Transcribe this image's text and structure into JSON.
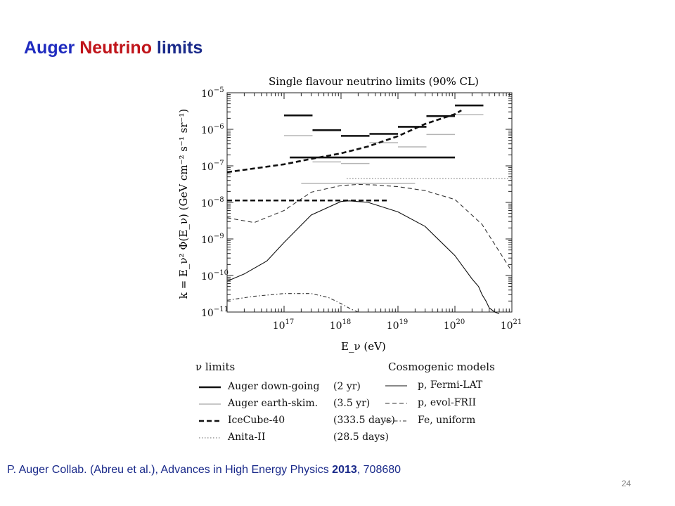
{
  "slide": {
    "title_part1": "Auger",
    "title_part2": "Neutrino",
    "title_part3": "limits",
    "colors": {
      "blue": "#1f2bbf",
      "red": "#c0141a",
      "navy": "#1a2a8a"
    },
    "citation_authors": "P. Auger Collab. (Abreu et al.),  Advances in High Energy Physics ",
    "citation_year": "2013",
    "citation_id": ", 708680",
    "page_number": "24"
  },
  "chart_data": {
    "type": "line",
    "title": "Single flavour neutrino limits (90% CL)",
    "xlabel": "E_ν (eV)",
    "ylabel": "k = E_ν² Φ(E_ν) (GeV cm⁻² s⁻¹ sr⁻¹)",
    "x_scale": "log",
    "y_scale": "log",
    "xlim": [
      1e+16,
      1e+21
    ],
    "ylim": [
      1e-11,
      1e-05
    ],
    "x_ticks": [
      {
        "v": 1e+17,
        "base": "10",
        "exp": "17"
      },
      {
        "v": 1e+18,
        "base": "10",
        "exp": "18"
      },
      {
        "v": 1e+19,
        "base": "10",
        "exp": "19"
      },
      {
        "v": 1e+20,
        "base": "10",
        "exp": "20"
      },
      {
        "v": 1e+21,
        "base": "10",
        "exp": "21"
      }
    ],
    "y_ticks": [
      {
        "v": 1e-05,
        "base": "10",
        "exp": "−5"
      },
      {
        "v": 1e-06,
        "base": "10",
        "exp": "−6"
      },
      {
        "v": 1e-07,
        "base": "10",
        "exp": "−7"
      },
      {
        "v": 1e-08,
        "base": "10",
        "exp": "−8"
      },
      {
        "v": 1e-09,
        "base": "10",
        "exp": "−9"
      },
      {
        "v": 1e-10,
        "base": "10",
        "exp": "−10"
      },
      {
        "v": 1e-11,
        "base": "10",
        "exp": "−11"
      }
    ],
    "grid": false,
    "legend": {
      "limits_heading": "ν limits",
      "models_heading": "Cosmogenic models",
      "limits": [
        {
          "name": "Auger down-going",
          "note": "(2 yr)",
          "style": "thick-solid"
        },
        {
          "name": "Auger earth-skim.",
          "note": "(3.5 yr)",
          "style": "thin-grey"
        },
        {
          "name": "IceCube-40",
          "note": "(333.5 days)",
          "style": "thick-dashed"
        },
        {
          "name": "Anita-II",
          "note": "(28.5 days)",
          "style": "dotted"
        }
      ],
      "models": [
        {
          "name": "p, Fermi-LAT",
          "style": "solid"
        },
        {
          "name": "p, evol-FRII",
          "style": "dashed"
        },
        {
          "name": "Fe, uniform",
          "style": "dash-dot"
        }
      ]
    },
    "series": [
      {
        "name": "Auger down-going",
        "kind": "steps",
        "style": "thick-solid",
        "bins": [
          [
            1e+17,
            3.16e+17,
            2.4e-06
          ],
          [
            3.16e+17,
            1e+18,
            9.5e-07
          ],
          [
            1e+18,
            3.16e+18,
            6.6e-07
          ],
          [
            3.16e+18,
            1e+19,
            7.5e-07
          ],
          [
            1e+19,
            3.16e+19,
            1.17e-06
          ],
          [
            3.16e+19,
            1e+20,
            2.3e-06
          ],
          [
            1e+20,
            3.16e+20,
            4.5e-06
          ]
        ]
      },
      {
        "name": "Auger down-going",
        "kind": "integrated",
        "style": "thick-solid",
        "x_range": [
          1.26e+17,
          1e+20
        ],
        "y": 1.7e-07
      },
      {
        "name": "Auger earth-skim.",
        "kind": "steps",
        "style": "thin-grey",
        "bins": [
          [
            1e+17,
            3.16e+17,
            6.7e-07
          ],
          [
            3.16e+17,
            1e+18,
            1.28e-07
          ],
          [
            1e+18,
            3.16e+18,
            1.16e-07
          ],
          [
            3.16e+18,
            1e+19,
            4.3e-07
          ],
          [
            1e+19,
            3.16e+19,
            3.3e-07
          ],
          [
            3.16e+19,
            1e+20,
            7.2e-07
          ],
          [
            1e+20,
            3.16e+20,
            2.5e-06
          ]
        ]
      },
      {
        "name": "Auger earth-skim.",
        "kind": "integrated",
        "style": "thin-grey",
        "x_range": [
          2e+17,
          2e+19
        ],
        "y": 3.3e-08
      },
      {
        "name": "IceCube-40",
        "kind": "curve",
        "style": "thick-dashed",
        "x": [
          1e+16,
          3e+16,
          1e+17,
          3e+17,
          1e+18,
          3e+18,
          1e+19,
          3e+19,
          1e+20,
          1.3e+20
        ],
        "y": [
          6.7e-08,
          8.5e-08,
          1.1e-07,
          1.55e-07,
          2.2e-07,
          3.4e-07,
          6.5e-07,
          1.4e-06,
          2.6e-06,
          3.3e-06
        ]
      },
      {
        "name": "IceCube-40",
        "kind": "integrated",
        "style": "thick-dashed",
        "x_range": [
          1e+16,
          7e+18
        ],
        "y": 1.13e-08
      },
      {
        "name": "Anita-II",
        "kind": "integrated",
        "style": "dotted",
        "x_range": [
          1.26e+18,
          1e+21
        ],
        "y": 4.5e-08
      },
      {
        "name": "p, Fermi-LAT",
        "kind": "curve",
        "style": "solid",
        "x": [
          1e+16,
          2e+16,
          5e+16,
          1e+17,
          3e+17,
          1e+18,
          1.4e+18,
          3e+18,
          1e+19,
          3e+19,
          1e+20,
          2e+20,
          2.6e+20,
          3e+20,
          3.5e+20,
          4e+20,
          5e+20,
          6e+20
        ],
        "y": [
          7e-11,
          1.1e-10,
          2.5e-10,
          8e-10,
          4.5e-09,
          1.06e-08,
          1.1e-08,
          1e-08,
          5.5e-09,
          2.2e-09,
          3.5e-10,
          8e-11,
          5e-11,
          3e-11,
          2e-11,
          1.3e-11,
          1e-11,
          9e-12
        ]
      },
      {
        "name": "p, evol-FRII",
        "kind": "curve",
        "style": "dashed",
        "x": [
          1e+16,
          3e+16,
          1e+17,
          3e+17,
          1e+18,
          2e+18,
          4e+18,
          1e+19,
          3e+19,
          1e+20,
          3e+20,
          1e+21
        ],
        "y": [
          3.8e-09,
          2.8e-09,
          6e-09,
          1.9e-08,
          2.9e-08,
          3.1e-08,
          3e-08,
          2.7e-08,
          2.1e-08,
          1.2e-08,
          2.5e-09,
          1.3e-10
        ]
      },
      {
        "name": "Fe, uniform",
        "kind": "curve",
        "style": "dash-dot",
        "x": [
          1e+16,
          3e+16,
          1e+17,
          3e+17,
          6e+17,
          1e+18,
          1.5e+18,
          2e+18
        ],
        "y": [
          2.1e-11,
          2.7e-11,
          3.2e-11,
          3.2e-11,
          2.5e-11,
          1.7e-11,
          1.2e-11,
          1e-11
        ]
      }
    ]
  }
}
